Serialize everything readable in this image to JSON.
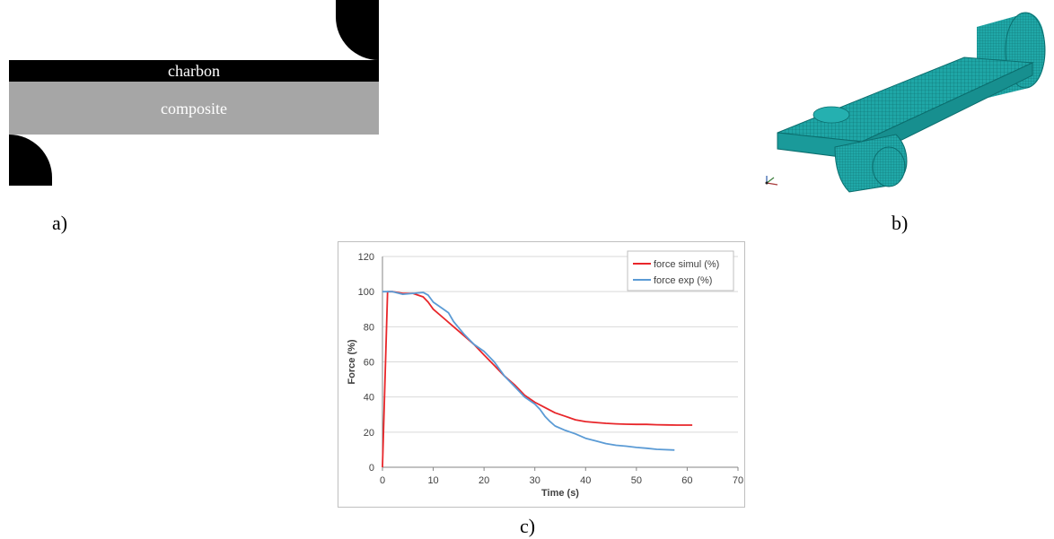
{
  "labels": {
    "a": "a)",
    "b": "b)",
    "c": "c)"
  },
  "panel_a": {
    "top_layer": "charbon",
    "bottom_layer": "composite"
  },
  "colors": {
    "mesh": "#1fa6a6",
    "mesh_line": "#0b6e6e",
    "simul": "#e8262a",
    "exp": "#5b9bd5",
    "composite": "#a6a6a6"
  },
  "chart_data": {
    "type": "line",
    "title": "",
    "xlabel": "Time (s)",
    "ylabel": "Force (%)",
    "xlim": [
      0,
      70
    ],
    "ylim": [
      0,
      120
    ],
    "xticks": [
      0,
      10,
      20,
      30,
      40,
      50,
      60,
      70
    ],
    "yticks": [
      0,
      20,
      40,
      60,
      80,
      100,
      120
    ],
    "grid": "horizontal",
    "legend_position": "top-right",
    "series": [
      {
        "name": "force simul (%)",
        "color": "#e8262a",
        "x": [
          0,
          1,
          2,
          4,
          6,
          8,
          9,
          10,
          12,
          14,
          16,
          18,
          20,
          22,
          24,
          26,
          28,
          30,
          32,
          34,
          36,
          38,
          40,
          42,
          44,
          46,
          48,
          50,
          52,
          54,
          56,
          58,
          61
        ],
        "y": [
          0,
          100,
          100,
          99,
          99,
          97,
          94,
          90,
          85,
          80,
          75,
          70,
          64,
          58,
          52,
          47,
          41,
          37,
          34,
          31,
          29,
          27,
          26,
          25.5,
          25,
          24.7,
          24.5,
          24.4,
          24.4,
          24.2,
          24.1,
          24,
          24
        ]
      },
      {
        "name": "force exp (%)",
        "color": "#5b9bd5",
        "x": [
          0,
          2,
          4,
          6,
          8,
          9,
          10,
          12,
          13,
          14,
          16,
          18,
          20,
          22,
          24,
          26,
          28,
          30,
          31,
          32,
          33,
          34,
          36,
          38,
          40,
          42,
          44,
          46,
          48,
          50,
          52,
          54,
          57.5
        ],
        "y": [
          100,
          100,
          98.5,
          99,
          99.5,
          98,
          94,
          90,
          88,
          83,
          76,
          70,
          66,
          60,
          52,
          46,
          40,
          36,
          33,
          29,
          26,
          23.5,
          21,
          19,
          16.5,
          15,
          13.5,
          12.5,
          12,
          11.3,
          10.8,
          10.2,
          9.8
        ]
      }
    ]
  }
}
